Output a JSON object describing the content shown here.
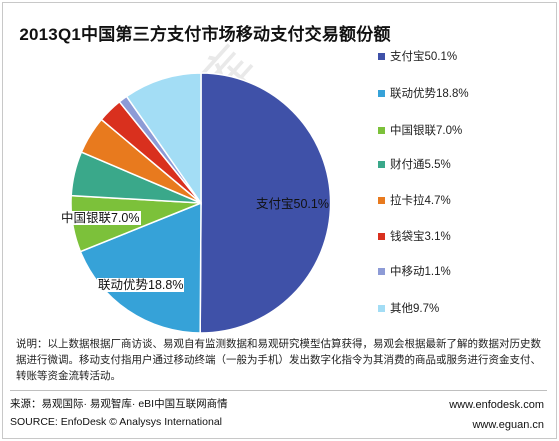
{
  "chart_data": {
    "type": "pie",
    "title": "2013Q1中国第三方支付市场移动支付交易额份额",
    "slices": [
      {
        "name": "支付宝",
        "value": 50.1,
        "legend": "支付宝50.1%",
        "label": "支付宝50.1%",
        "color": "#3f51a8"
      },
      {
        "name": "联动优势",
        "value": 18.8,
        "legend": "联动优势18.8%",
        "label": "联动优势18.8%",
        "color": "#36a2d8"
      },
      {
        "name": "中国银联",
        "value": 7.0,
        "legend": "中国银联7.0%",
        "label": "中国银联7.0%",
        "color": "#7cc13a"
      },
      {
        "name": "财付通",
        "value": 5.5,
        "legend": "财付通5.5%",
        "label": "",
        "color": "#3aa88a"
      },
      {
        "name": "拉卡拉",
        "value": 4.7,
        "legend": "拉卡拉4.7%",
        "label": "",
        "color": "#e87a1e"
      },
      {
        "name": "钱袋宝",
        "value": 3.1,
        "legend": "钱袋宝3.1%",
        "label": "",
        "color": "#d9301e"
      },
      {
        "name": "中移动",
        "value": 1.1,
        "legend": "中移动1.1%",
        "label": "",
        "color": "#8d9bd6"
      },
      {
        "name": "其他",
        "value": 9.7,
        "legend": "其他9.7%",
        "label": "",
        "color": "#a3ddf5"
      }
    ],
    "legend_position": "right",
    "start": "12 o'clock, clockwise"
  },
  "watermark": "易观智库",
  "footer": {
    "note": "说明：以上数据根据厂商访谈、易观自有监测数据和易观研究模型估算获得，易观会根据最新了解的数据对历史数据进行微调。移动支付指用户通过移动终端（一般为手机）发出数字化指令为其消费的商品或服务进行资金支付、转账等资金流转活动。",
    "source_cn": "来源：易观国际· 易观智库· eBI中国互联网商情",
    "source_en": "SOURCE: EnfoDesk © Analysys International",
    "site1": "www.enfodesk.com",
    "site2": "www.eguan.cn"
  }
}
